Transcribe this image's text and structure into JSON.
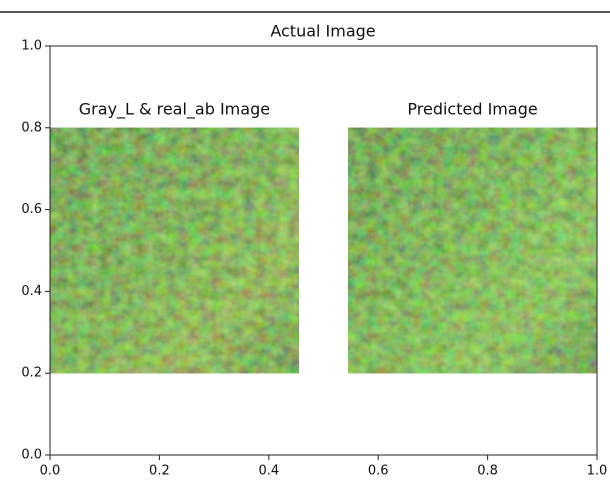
{
  "chart_data": {
    "type": "image",
    "title": "Actual Image",
    "xlim": [
      0,
      1
    ],
    "ylim": [
      0,
      1
    ],
    "xticks": [
      {
        "value": 0,
        "label": "0.0"
      },
      0.2,
      0.4,
      0.6,
      0.8,
      {
        "value": 1,
        "label": "1.0"
      }
    ],
    "yticks": [
      {
        "value": 0,
        "label": "0.0"
      },
      0.2,
      0.4,
      0.6,
      0.8,
      {
        "value": 1,
        "label": "1.0"
      }
    ],
    "images": [
      {
        "title": "Gray_L & real_ab Image",
        "extent": [
          0,
          0.455,
          0.2,
          0.8
        ]
      },
      {
        "title": "Predicted Image",
        "extent": [
          0.545,
          1,
          0.2,
          0.8
        ]
      }
    ]
  }
}
